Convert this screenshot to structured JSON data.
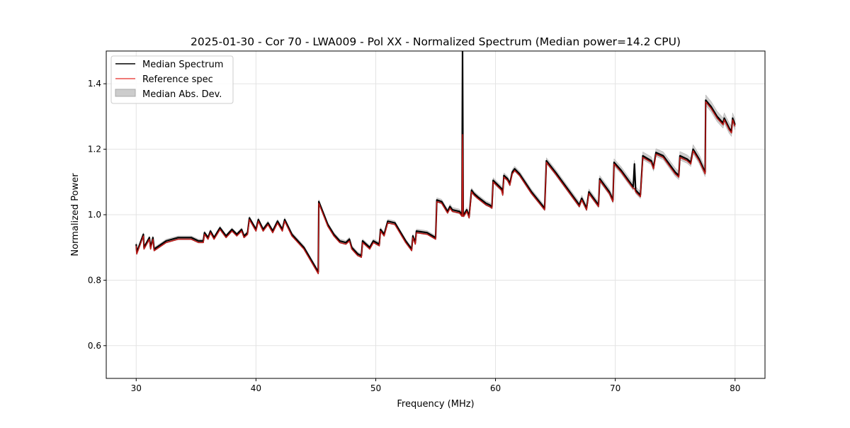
{
  "chart_data": {
    "type": "line",
    "title": "2025-01-30 - Cor 70 - LWA009 - Pol XX - Normalized Spectrum (Median power=14.2 CPU)",
    "xlabel": "Frequency (MHz)",
    "ylabel": "Normalized Power",
    "xlim": [
      27.5,
      82.5
    ],
    "ylim": [
      0.5,
      1.5
    ],
    "xticks": [
      30,
      40,
      50,
      60,
      70,
      80
    ],
    "yticks": [
      0.6,
      0.8,
      1.0,
      1.2,
      1.4
    ],
    "xtick_labels": [
      "30",
      "40",
      "50",
      "60",
      "70",
      "80"
    ],
    "ytick_labels": [
      "0.6",
      "0.8",
      "1.0",
      "1.2",
      "1.4"
    ],
    "grid": true,
    "legend_position": "top-left",
    "legend": [
      "Median Spectrum",
      "Reference spec",
      "Median Abs. Dev."
    ],
    "colors": {
      "median": "#000000",
      "reference": "#e8302a",
      "reference_dark": "#8b0000",
      "mad": "#bbbbbb"
    },
    "x": [
      30.0,
      30.05,
      30.6,
      30.65,
      31.1,
      31.2,
      31.4,
      31.5,
      32.5,
      33.5,
      34.6,
      35.2,
      35.6,
      35.7,
      36.0,
      36.2,
      36.5,
      37.0,
      37.5,
      38.0,
      38.4,
      38.8,
      39.0,
      39.3,
      39.45,
      40.0,
      40.2,
      40.6,
      41.0,
      41.4,
      41.8,
      42.2,
      42.4,
      43.0,
      44.0,
      45.2,
      45.25,
      46.0,
      46.5,
      47.0,
      47.5,
      47.8,
      48.0,
      48.5,
      48.8,
      48.9,
      49.5,
      49.8,
      50.3,
      50.4,
      50.7,
      51.0,
      51.6,
      52.5,
      53.0,
      53.1,
      53.3,
      53.4,
      54.3,
      55.0,
      55.1,
      55.5,
      56.0,
      56.2,
      56.4,
      57.0,
      57.2,
      57.25,
      57.3,
      57.35,
      57.6,
      57.8,
      58.0,
      58.2,
      58.5,
      59.2,
      59.5,
      59.7,
      59.8,
      60.5,
      60.6,
      60.7,
      61.0,
      61.2,
      61.4,
      61.6,
      62.0,
      63.0,
      64.1,
      64.25,
      65.0,
      66.0,
      67.0,
      67.2,
      67.6,
      67.8,
      68.6,
      68.7,
      69.5,
      69.8,
      69.9,
      70.5,
      71.0,
      71.5,
      71.6,
      71.7,
      72.1,
      72.3,
      73.0,
      73.2,
      73.4,
      74.0,
      75.0,
      75.3,
      75.4,
      76.0,
      76.3,
      76.5,
      77.0,
      77.5,
      77.55,
      78.0,
      78.5,
      79.0,
      79.1,
      79.5,
      79.7,
      79.8,
      80.0
    ],
    "series": [
      {
        "name": "Median Spectrum",
        "values": [
          0.91,
          0.885,
          0.94,
          0.9,
          0.93,
          0.9,
          0.93,
          0.895,
          0.92,
          0.93,
          0.93,
          0.92,
          0.92,
          0.945,
          0.93,
          0.95,
          0.93,
          0.96,
          0.935,
          0.955,
          0.94,
          0.955,
          0.935,
          0.945,
          0.99,
          0.955,
          0.985,
          0.955,
          0.975,
          0.95,
          0.98,
          0.955,
          0.985,
          0.94,
          0.9,
          0.825,
          1.04,
          0.97,
          0.94,
          0.92,
          0.915,
          0.925,
          0.9,
          0.88,
          0.875,
          0.92,
          0.9,
          0.92,
          0.91,
          0.955,
          0.94,
          0.98,
          0.975,
          0.92,
          0.895,
          0.935,
          0.915,
          0.95,
          0.945,
          0.93,
          1.045,
          1.04,
          1.01,
          1.025,
          1.015,
          1.01,
          1.0,
          1.5,
          1.0,
          1.0,
          1.015,
          0.995,
          1.075,
          1.065,
          1.055,
          1.035,
          1.03,
          1.025,
          1.105,
          1.08,
          1.065,
          1.12,
          1.11,
          1.095,
          1.13,
          1.14,
          1.125,
          1.07,
          1.02,
          1.165,
          1.13,
          1.08,
          1.03,
          1.05,
          1.02,
          1.07,
          1.03,
          1.11,
          1.07,
          1.045,
          1.16,
          1.135,
          1.11,
          1.085,
          1.155,
          1.075,
          1.06,
          1.18,
          1.165,
          1.145,
          1.19,
          1.18,
          1.13,
          1.12,
          1.18,
          1.17,
          1.16,
          1.2,
          1.17,
          1.13,
          1.35,
          1.33,
          1.3,
          1.28,
          1.295,
          1.265,
          1.255,
          1.295,
          1.275
        ]
      },
      {
        "name": "Reference spec",
        "values": [
          0.905,
          0.88,
          0.935,
          0.895,
          0.925,
          0.895,
          0.925,
          0.89,
          0.915,
          0.925,
          0.925,
          0.915,
          0.915,
          0.94,
          0.925,
          0.945,
          0.925,
          0.955,
          0.93,
          0.95,
          0.935,
          0.95,
          0.93,
          0.94,
          0.985,
          0.95,
          0.98,
          0.95,
          0.97,
          0.945,
          0.975,
          0.95,
          0.98,
          0.935,
          0.895,
          0.82,
          1.035,
          0.965,
          0.935,
          0.915,
          0.91,
          0.92,
          0.895,
          0.875,
          0.87,
          0.915,
          0.895,
          0.915,
          0.905,
          0.95,
          0.935,
          0.975,
          0.97,
          0.915,
          0.89,
          0.93,
          0.91,
          0.945,
          0.94,
          0.925,
          1.04,
          1.035,
          1.005,
          1.02,
          1.01,
          1.005,
          0.995,
          1.245,
          0.995,
          0.995,
          1.01,
          0.99,
          1.07,
          1.06,
          1.05,
          1.03,
          1.025,
          1.02,
          1.1,
          1.075,
          1.06,
          1.115,
          1.105,
          1.09,
          1.125,
          1.135,
          1.12,
          1.065,
          1.015,
          1.16,
          1.125,
          1.075,
          1.025,
          1.045,
          1.015,
          1.065,
          1.025,
          1.105,
          1.065,
          1.04,
          1.155,
          1.13,
          1.105,
          1.08,
          1.08,
          1.07,
          1.055,
          1.175,
          1.16,
          1.14,
          1.185,
          1.175,
          1.125,
          1.115,
          1.175,
          1.165,
          1.155,
          1.195,
          1.165,
          1.125,
          1.345,
          1.325,
          1.295,
          1.275,
          1.29,
          1.26,
          1.25,
          1.29,
          1.27
        ]
      },
      {
        "name": "Median Abs. Dev.",
        "values": [
          0.005,
          0.005,
          0.005,
          0.005,
          0.005,
          0.005,
          0.005,
          0.005,
          0.005,
          0.005,
          0.005,
          0.005,
          0.005,
          0.005,
          0.005,
          0.005,
          0.005,
          0.005,
          0.005,
          0.005,
          0.005,
          0.005,
          0.005,
          0.005,
          0.005,
          0.006,
          0.006,
          0.006,
          0.006,
          0.006,
          0.006,
          0.006,
          0.006,
          0.006,
          0.006,
          0.006,
          0.006,
          0.006,
          0.006,
          0.006,
          0.006,
          0.006,
          0.006,
          0.006,
          0.006,
          0.006,
          0.006,
          0.006,
          0.006,
          0.006,
          0.006,
          0.006,
          0.006,
          0.006,
          0.006,
          0.006,
          0.006,
          0.006,
          0.006,
          0.006,
          0.007,
          0.007,
          0.007,
          0.007,
          0.007,
          0.007,
          0.007,
          0.007,
          0.007,
          0.007,
          0.007,
          0.007,
          0.007,
          0.007,
          0.007,
          0.007,
          0.007,
          0.007,
          0.008,
          0.008,
          0.008,
          0.008,
          0.008,
          0.008,
          0.008,
          0.008,
          0.008,
          0.008,
          0.008,
          0.009,
          0.009,
          0.009,
          0.009,
          0.009,
          0.009,
          0.009,
          0.009,
          0.01,
          0.01,
          0.01,
          0.011,
          0.011,
          0.011,
          0.011,
          0.011,
          0.011,
          0.011,
          0.012,
          0.012,
          0.012,
          0.012,
          0.012,
          0.013,
          0.013,
          0.013,
          0.013,
          0.013,
          0.014,
          0.014,
          0.014,
          0.016,
          0.016,
          0.016,
          0.016,
          0.016,
          0.016,
          0.016,
          0.016,
          0.016
        ]
      }
    ]
  }
}
